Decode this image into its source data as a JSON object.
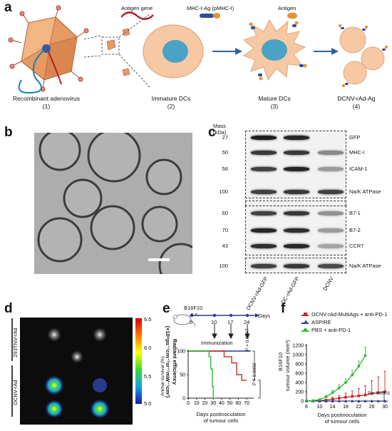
{
  "panels": {
    "a": "a",
    "b": "b",
    "c": "c",
    "d": "d",
    "e": "e",
    "f": "f"
  },
  "panel_a": {
    "legend": [
      "Antigen gene",
      "MHC-I-Ag (pMHC-I)",
      "Antigen"
    ],
    "stages": [
      {
        "name": "Recombinant adenovirus",
        "num": "(1)"
      },
      {
        "name": "Immature DCs",
        "num": "(2)"
      },
      {
        "name": "Mature DCs",
        "num": "(3)"
      },
      {
        "name": "DCNV-rAd-Ag",
        "num": "(4)"
      }
    ]
  },
  "panel_c": {
    "mass_header": [
      "Mass",
      "(kDa)"
    ],
    "masses": [
      "27",
      "50",
      "56",
      "100",
      "60",
      "70",
      "43",
      "100"
    ],
    "proteins": [
      "GFP",
      "MHC-I",
      "ICAM-1",
      "Na/K ATPase",
      "B7-1",
      "B7-2",
      "CCR7",
      "Na/K ATPase"
    ],
    "lanes": [
      "DCNV-rAd-GFP",
      "DC-rAd-GFP",
      "DCNV"
    ]
  },
  "panel_d": {
    "row_labels": [
      "293TNV-rAd\n-OVA@ICG",
      "DCNV-rAd\n-OVA@ICG"
    ],
    "colorbar_ticks": [
      "6.5",
      "6.0",
      "5.5",
      "5.0"
    ],
    "colorbar_label": "Radiant efficiency",
    "colorbar_units": "(×10⁸ps⁻¹cm⁻²sr⁻¹mW⁻¹cm²)"
  },
  "panel_e": {
    "tumour": "B16F10",
    "route": "s.c.",
    "timeline_ticks": [
      "0",
      "10",
      "17",
      "24"
    ],
    "timeline_unit": "Days",
    "immunization": "Immunization",
    "p_values": [
      "P = 0.0047",
      "P = 0.0002"
    ],
    "ylabel": "Animal survival (%)",
    "xlabel": "Days postinoculation\nof tumour cells"
  },
  "panel_f": {
    "ylabel_top": "B16F10",
    "ylabel": "tumour volume (mm³)",
    "xlabel": "Days postinoculation\nof tumour cells",
    "p_value": "P < 0.0001"
  },
  "colors": {
    "red": "#c62828",
    "green": "#33b833",
    "blue": "#2e3d8f",
    "arrow": "#2f5fa6",
    "cell": "#f6c8a4",
    "nucleus": "#4aa3c4"
  },
  "chart_data": [
    {
      "type": "line",
      "title": "",
      "xlabel": "Days postinoculation of tumour cells",
      "ylabel": "Animal survival (%)",
      "xlim": [
        0,
        75
      ],
      "ylim": [
        0,
        100
      ],
      "x_ticks": [
        0,
        10,
        20,
        30,
        40,
        50,
        60,
        70
      ],
      "y_ticks": [
        0,
        50,
        100
      ],
      "series": [
        {
          "color": "#2e3d8f",
          "points": [
            [
              0,
              100
            ],
            [
              75,
              100
            ]
          ]
        },
        {
          "color": "#c62828",
          "points": [
            [
              0,
              100
            ],
            [
              43,
              100
            ],
            [
              43,
              88
            ],
            [
              52,
              88
            ],
            [
              52,
              75
            ],
            [
              58,
              75
            ],
            [
              58,
              50
            ],
            [
              64,
              50
            ],
            [
              64,
              38
            ],
            [
              70,
              38
            ]
          ]
        },
        {
          "color": "#33b833",
          "points": [
            [
              0,
              100
            ],
            [
              25,
              100
            ],
            [
              25,
              88
            ],
            [
              27,
              88
            ],
            [
              27,
              62
            ],
            [
              29,
              62
            ],
            [
              29,
              25
            ],
            [
              30,
              25
            ],
            [
              30,
              0
            ],
            [
              32,
              0
            ]
          ]
        }
      ],
      "annotations": [
        "P = 0.0047",
        "P = 0.0002"
      ]
    },
    {
      "type": "line",
      "title": "",
      "xlabel": "Days postinoculation of tumour cells",
      "ylabel": "tumour volume (mm³)",
      "xlim": [
        6,
        30
      ],
      "ylim": [
        0,
        1200
      ],
      "x_ticks": [
        6,
        10,
        14,
        18,
        22,
        26,
        30
      ],
      "y_ticks": [
        0,
        200,
        400,
        600,
        800,
        1000,
        1200
      ],
      "series": [
        {
          "name": "DCNV-rAd-MultiAgs + anti-PD-1",
          "color": "#c62828",
          "x": [
            6,
            8,
            10,
            12,
            14,
            16,
            18,
            20,
            22,
            24,
            26,
            28,
            30
          ],
          "y": [
            2,
            5,
            10,
            20,
            40,
            60,
            80,
            100,
            110,
            130,
            160,
            180,
            200
          ],
          "err": [
            2,
            5,
            10,
            20,
            40,
            60,
            90,
            120,
            160,
            200,
            280,
            340,
            440
          ]
        },
        {
          "name": "ASPIRE",
          "color": "#2e3d8f",
          "x": [
            6,
            8,
            10,
            12,
            14,
            16,
            18,
            20,
            22,
            24,
            26,
            28,
            30
          ],
          "y": [
            0,
            0,
            0,
            0,
            0,
            0,
            0,
            0,
            0,
            0,
            0,
            0,
            0
          ]
        },
        {
          "name": "PBS + anti-PD-1",
          "color": "#33b833",
          "x": [
            6,
            8,
            10,
            12,
            14,
            16,
            18,
            20,
            22,
            24
          ],
          "y": [
            2,
            10,
            30,
            90,
            180,
            280,
            400,
            560,
            750,
            980
          ],
          "err": [
            2,
            5,
            15,
            30,
            50,
            70,
            80,
            100,
            110,
            180
          ]
        }
      ],
      "annotations": [
        "P < 0.0001"
      ]
    }
  ]
}
